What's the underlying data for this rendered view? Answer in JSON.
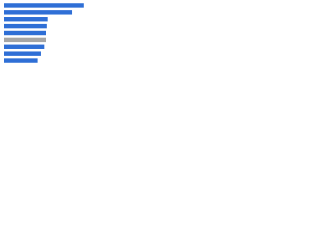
{
  "chart_data": {
    "type": "bar",
    "orientation": "horizontal",
    "categories": [
      null,
      null,
      null,
      null,
      null,
      null,
      null,
      null,
      null
    ],
    "values": [
      95,
      81,
      52,
      51,
      50,
      50,
      48,
      44,
      40
    ],
    "colors": [
      "#2f6fd6",
      "#2f6fd6",
      "#2f6fd6",
      "#2f6fd6",
      "#2f6fd6",
      "#a6a6a6",
      "#2f6fd6",
      "#2f6fd6",
      "#2f6fd6"
    ],
    "xlim": [
      0,
      100
    ]
  }
}
